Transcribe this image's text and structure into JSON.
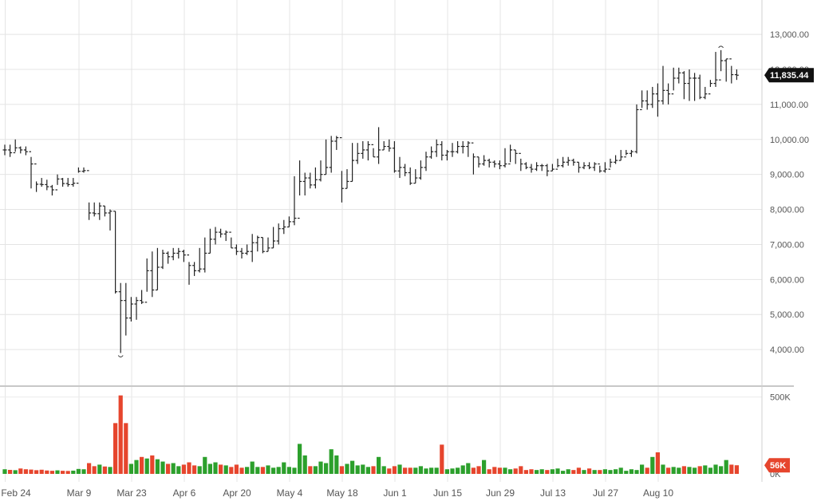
{
  "chart_data": {
    "type": "ohlc",
    "price_axis": {
      "ticks": [
        4000,
        5000,
        6000,
        7000,
        8000,
        9000,
        10000,
        11000,
        12000,
        13000
      ],
      "tick_labels": [
        "4,000.00",
        "5,000.00",
        "6,000.00",
        "7,000.00",
        "8,000.00",
        "9,000.00",
        "10,000.00",
        "11,000.00",
        "12,000.00",
        "13,000.00"
      ],
      "range": [
        3000,
        13800
      ]
    },
    "volume_axis": {
      "tick_labels": [
        "500K",
        "0K"
      ],
      "ticks": [
        500000,
        0
      ],
      "range": [
        0,
        560000
      ]
    },
    "last_price": {
      "value": 11835.44,
      "label": "11,835.44"
    },
    "last_volume": {
      "value": 56000,
      "label": "56K"
    },
    "x_axis": {
      "labels": [
        "Feb 24",
        "Mar 9",
        "Mar 23",
        "Apr 6",
        "Apr 20",
        "May 4",
        "May 18",
        "Jun 1",
        "Jun 15",
        "Jun 29",
        "Jul 13",
        "Jul 27",
        "Aug 10"
      ],
      "label_bar_index": [
        1,
        15,
        25,
        35,
        45,
        55,
        65,
        75,
        85,
        95,
        105,
        115,
        125
      ]
    },
    "grid": true,
    "colors": {
      "up_volume": "#2ca02c",
      "down_volume": "#e6452d",
      "bar": "#222222",
      "tag": "#111111"
    },
    "close": [
      9700,
      9620,
      9760,
      9700,
      9650,
      9300,
      8720,
      8710,
      8650,
      8560,
      8870,
      8740,
      8710,
      8750,
      9090,
      9110,
      7900,
      7880,
      8100,
      7900,
      7950,
      5650,
      5400,
      4900,
      5300,
      5400,
      5350,
      6250,
      5700,
      6350,
      6750,
      6650,
      6750,
      6800,
      6700,
      6400,
      6250,
      6300,
      6750,
      7150,
      7350,
      7300,
      7350,
      6900,
      6800,
      6750,
      6800,
      7050,
      7200,
      6800,
      6900,
      7100,
      7450,
      7500,
      7650,
      7750,
      8800,
      8900,
      8700,
      8850,
      9000,
      9200,
      9950,
      10050,
      8600,
      8800,
      9400,
      9600,
      9700,
      9850,
      9500,
      9700,
      9800,
      9750,
      9100,
      9200,
      9050,
      8750,
      8900,
      9200,
      9500,
      9650,
      9850,
      9550,
      9650,
      9650,
      9800,
      9800,
      9900,
      9500,
      9300,
      9400,
      9350,
      9300,
      9250,
      9300,
      9700,
      9600,
      9300,
      9200,
      9150,
      9250,
      9250,
      9100,
      9150,
      9250,
      9350,
      9400,
      9350,
      9200,
      9250,
      9200,
      9300,
      9100,
      9150,
      9350,
      9400,
      9500,
      9600,
      9650,
      10850,
      11100,
      11000,
      11300,
      11100,
      11400,
      11300,
      11750,
      11900,
      11600,
      11750,
      11750,
      11200,
      11300,
      11600,
      11700,
      12250,
      12300,
      11850,
      11835
    ],
    "high": [
      9850,
      9850,
      10000,
      9800,
      9800,
      9500,
      8800,
      8900,
      8850,
      8700,
      9000,
      8900,
      8900,
      8900,
      9200,
      9200,
      8200,
      8200,
      8200,
      8100,
      8000,
      7950,
      5900,
      5900,
      5500,
      5500,
      5700,
      6600,
      6800,
      6900,
      6850,
      6800,
      6900,
      6900,
      6850,
      6500,
      6500,
      6900,
      7200,
      7450,
      7500,
      7450,
      7400,
      7200,
      7000,
      6900,
      7000,
      7300,
      7250,
      7200,
      7200,
      7500,
      7600,
      7700,
      7800,
      8950,
      9400,
      9050,
      9050,
      9200,
      9400,
      10000,
      10100,
      10100,
      9100,
      9150,
      9900,
      9900,
      9950,
      9950,
      9750,
      10350,
      9950,
      10000,
      9950,
      9500,
      9300,
      9200,
      9150,
      9400,
      9650,
      9800,
      10000,
      9950,
      9700,
      9900,
      9950,
      9950,
      9950,
      9600,
      9500,
      9550,
      9450,
      9400,
      9400,
      9750,
      9850,
      9700,
      9450,
      9350,
      9300,
      9350,
      9300,
      9300,
      9300,
      9450,
      9500,
      9500,
      9450,
      9350,
      9350,
      9350,
      9350,
      9250,
      9350,
      9450,
      9550,
      9700,
      9700,
      9700,
      11000,
      11400,
      11400,
      11500,
      11600,
      12100,
      11600,
      12050,
      12050,
      11950,
      12000,
      11900,
      11850,
      11500,
      11700,
      12500,
      12550,
      12300,
      12100,
      12000
    ],
    "low": [
      9550,
      9500,
      9650,
      9600,
      9550,
      8600,
      8500,
      8650,
      8550,
      8400,
      8700,
      8650,
      8650,
      8650,
      9050,
      9050,
      7700,
      7800,
      7700,
      7800,
      7400,
      5600,
      3900,
      4400,
      4800,
      4850,
      5300,
      5650,
      5500,
      5700,
      6300,
      6450,
      6550,
      6600,
      6500,
      5850,
      6100,
      6200,
      6200,
      6750,
      7000,
      7200,
      7100,
      6900,
      6700,
      6600,
      6700,
      6500,
      6800,
      6750,
      6800,
      6900,
      7000,
      7300,
      7500,
      7550,
      8400,
      8400,
      8600,
      8600,
      8800,
      9000,
      9050,
      9700,
      8200,
      8600,
      8800,
      9300,
      9450,
      9400,
      9500,
      9300,
      9700,
      9650,
      9050,
      8900,
      8950,
      8700,
      8750,
      8850,
      9100,
      9450,
      9500,
      9400,
      9400,
      9500,
      9600,
      9600,
      9500,
      9000,
      9200,
      9250,
      9200,
      9200,
      9150,
      9200,
      9350,
      9300,
      9100,
      9150,
      9050,
      9100,
      9100,
      8950,
      9100,
      9200,
      9200,
      9250,
      9250,
      9050,
      9150,
      9150,
      9100,
      9050,
      9050,
      9200,
      9300,
      9400,
      9550,
      9500,
      9600,
      10900,
      10850,
      10900,
      10650,
      11000,
      11000,
      11400,
      11600,
      11150,
      11100,
      11100,
      11150,
      11150,
      11500,
      11500,
      11950,
      11650,
      11600,
      11700
    ],
    "volume": [
      30000,
      26000,
      24000,
      35000,
      30000,
      28000,
      24000,
      27000,
      22000,
      20000,
      23000,
      20000,
      19000,
      21000,
      32000,
      30000,
      70000,
      50000,
      60000,
      48000,
      45000,
      330000,
      510000,
      330000,
      65000,
      90000,
      110000,
      100000,
      120000,
      95000,
      80000,
      65000,
      70000,
      50000,
      60000,
      75000,
      55000,
      50000,
      110000,
      65000,
      75000,
      60000,
      55000,
      45000,
      60000,
      40000,
      45000,
      80000,
      45000,
      45000,
      55000,
      40000,
      45000,
      75000,
      45000,
      40000,
      195000,
      120000,
      50000,
      50000,
      80000,
      70000,
      160000,
      120000,
      50000,
      65000,
      85000,
      55000,
      60000,
      45000,
      50000,
      110000,
      50000,
      35000,
      50000,
      60000,
      40000,
      40000,
      40000,
      50000,
      35000,
      40000,
      40000,
      190000,
      30000,
      35000,
      40000,
      55000,
      70000,
      40000,
      50000,
      90000,
      30000,
      45000,
      40000,
      40000,
      30000,
      35000,
      50000,
      25000,
      30000,
      25000,
      30000,
      25000,
      30000,
      35000,
      20000,
      30000,
      25000,
      40000,
      25000,
      35000,
      25000,
      25000,
      30000,
      25000,
      30000,
      40000,
      20000,
      30000,
      25000,
      60000,
      40000,
      110000,
      140000,
      60000,
      40000,
      45000,
      40000,
      50000,
      45000,
      40000,
      50000,
      55000,
      40000,
      60000,
      50000,
      90000,
      60000,
      56000
    ]
  }
}
